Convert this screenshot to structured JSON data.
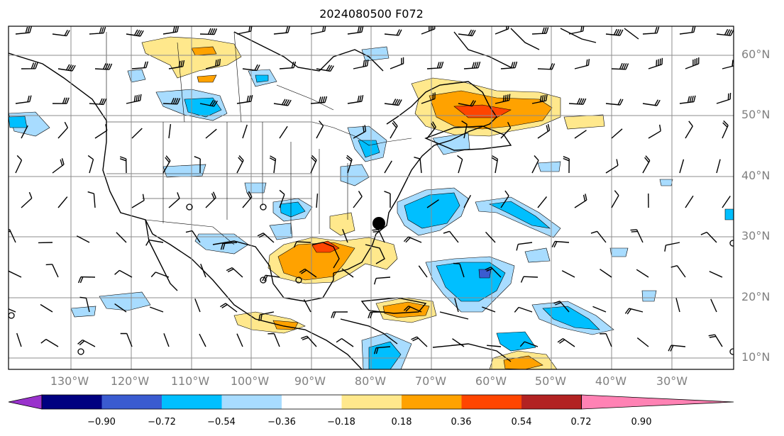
{
  "title": "2024080500 F072",
  "lat_labels": [
    "60°N",
    "50°N",
    "40°N",
    "30°N",
    "20°N",
    "10°N"
  ],
  "lon_labels": [
    "130°W",
    "120°W",
    "110°W",
    "100°W",
    "90°W",
    "80°W",
    "70°W",
    "60°W",
    "50°W",
    "40°W",
    "30°W"
  ],
  "colorbar": {
    "ticks": [
      "−0.90",
      "−0.72",
      "−0.54",
      "−0.36",
      "−0.18",
      "0.18",
      "0.36",
      "0.54",
      "0.72",
      "0.90"
    ],
    "colors": [
      "#9932cc",
      "#000080",
      "#3a5bd0",
      "#00bfff",
      "#a8dcff",
      "#ffffff",
      "#ffe88c",
      "#ffa200",
      "#ff4500",
      "#b22222",
      "#ff82b4"
    ]
  }
}
